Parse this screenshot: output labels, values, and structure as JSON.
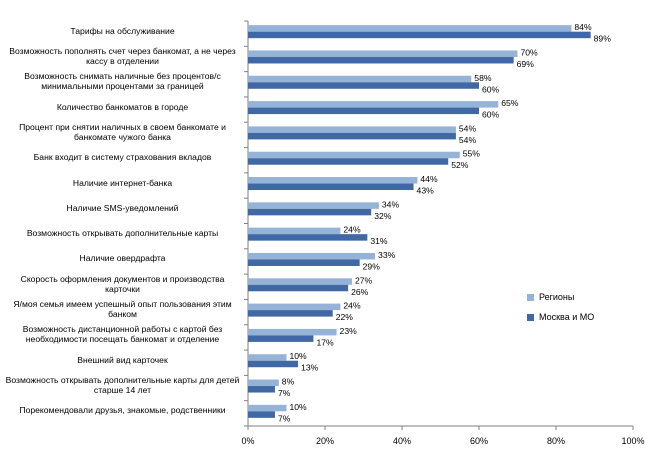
{
  "colors": {
    "regions": "#95B3D7",
    "moscow": "#4068A4",
    "axis": "#808080"
  },
  "chart_data": {
    "type": "bar",
    "orientation": "horizontal",
    "categories": [
      "Тарифы на обслуживание",
      "Возможность пополнять счет через банкомат, а не через кассу в отделении",
      "Возможность снимать наличные без процентов/с минимальными процентами за границей",
      "Количество банкоматов в городе",
      "Процент при снятии наличных в своем банкомате и банкомате чужого банка",
      "Банк входит в систему страхования вкладов",
      "Наличие интернет-банка",
      "Наличие SMS-уведомлений",
      "Возможность открывать дополнительные карты",
      "Наличие овердрафта",
      "Скорость оформления документов и производства карточки",
      "Я/моя семья имеем успешный опыт пользования этим банком",
      "Возможность дистанционной работы с картой без необходимости посещать банкомат и отделение",
      "Внешний вид карточек",
      "Возможность открывать дополнительные карты для детей старше 14 лет",
      "Порекомендовали друзья, знакомые, родственники"
    ],
    "series": [
      {
        "name": "Регионы",
        "values": [
          84,
          70,
          58,
          65,
          54,
          55,
          44,
          34,
          24,
          33,
          27,
          24,
          23,
          10,
          8,
          10
        ]
      },
      {
        "name": "Москва и МО",
        "values": [
          89,
          69,
          60,
          60,
          54,
          52,
          43,
          32,
          31,
          29,
          26,
          22,
          17,
          13,
          7,
          7
        ]
      }
    ],
    "value_labels": {
      "Регионы": [
        "84%",
        "70%",
        "58%",
        "65%",
        "54%",
        "55%",
        "44%",
        "34%",
        "24%",
        "33%",
        "27%",
        "24%",
        "23%",
        "10%",
        "8%",
        "10%"
      ],
      "Москва и МО": [
        "89%",
        "69%",
        "60%",
        "60%",
        "54%",
        "52%",
        "43%",
        "32%",
        "31%",
        "29%",
        "26%",
        "22%",
        "17%",
        "13%",
        "7%",
        "7%"
      ]
    },
    "xlim": [
      0,
      100
    ],
    "xticks": [
      "0%",
      "20%",
      "40%",
      "60%",
      "80%",
      "100%"
    ],
    "grid": false,
    "legend_position": "right"
  }
}
